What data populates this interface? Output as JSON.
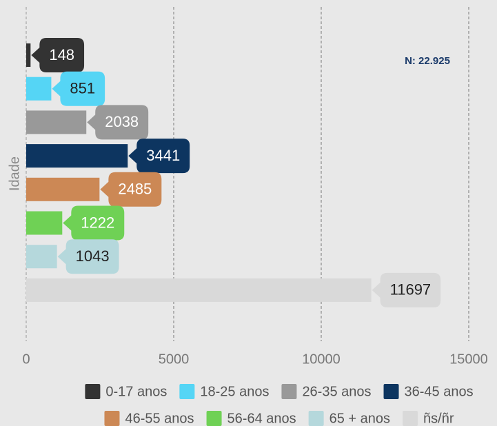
{
  "chart_data": {
    "type": "bar",
    "orientation": "horizontal",
    "ylabel": "Idade",
    "annotation": "N: 22.925",
    "series": [
      {
        "name": "0-17 anos",
        "color": "#333333",
        "values": [
          148
        ]
      },
      {
        "name": "18-25 anos",
        "color": "#55d5f5",
        "values": [
          851
        ]
      },
      {
        "name": "26-35 anos",
        "color": "#999999",
        "values": [
          2038
        ]
      },
      {
        "name": "36-45 anos",
        "color": "#0d3560",
        "values": [
          3441
        ]
      },
      {
        "name": "46-55 anos",
        "color": "#cc8855",
        "values": [
          2485
        ]
      },
      {
        "name": "56-64 anos",
        "color": "#6fd155",
        "values": [
          1222
        ]
      },
      {
        "name": "65 + anos",
        "color": "#b5d8dc",
        "values": [
          1043
        ]
      },
      {
        "name": "ñs/ñr",
        "color": "#d9d9d9",
        "values": [
          11697
        ]
      }
    ],
    "xlim": [
      0,
      15000
    ],
    "xticks": [
      0,
      5000,
      10000,
      15000
    ],
    "grid": true,
    "legend": "bottom"
  }
}
